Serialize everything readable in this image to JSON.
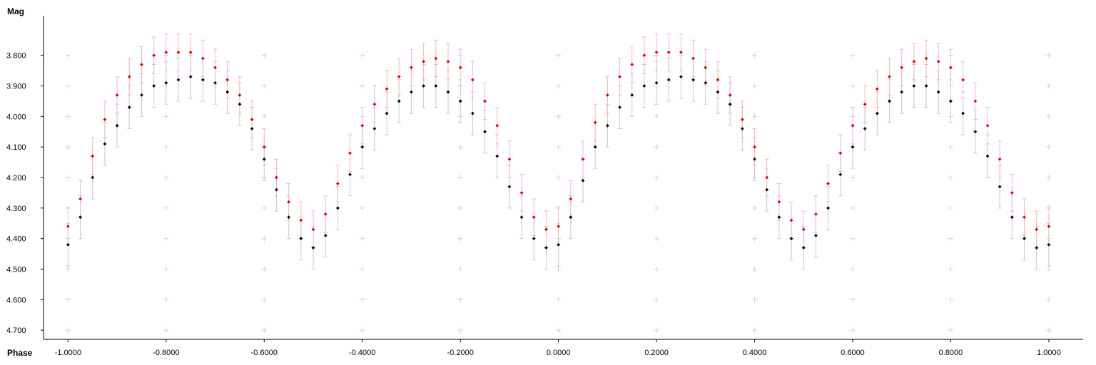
{
  "chart_data": {
    "type": "scatter",
    "title": "",
    "xlabel": "Phase",
    "ylabel": "Mag",
    "xlim": [
      -1.05,
      1.07
    ],
    "ylim": [
      3.67,
      4.73
    ],
    "y_inverted": true,
    "grid": "plus-markers",
    "legend": "none",
    "x_ticks": [
      -1.0,
      -0.8,
      -0.6,
      -0.4,
      -0.2,
      0.0,
      0.2,
      0.4,
      0.6,
      0.8,
      1.0
    ],
    "x_tick_labels": [
      "-1.0000",
      "-0.8000",
      "-0.6000",
      "-0.4000",
      "-0.2000",
      "0.0000",
      "0.2000",
      "0.4000",
      "0.6000",
      "0.8000",
      "1.0000"
    ],
    "y_ticks": [
      3.8,
      3.9,
      4.0,
      4.1,
      4.2,
      4.3,
      4.4,
      4.5,
      4.6,
      4.7
    ],
    "y_tick_labels": [
      "3.800",
      "3.900",
      "4.000",
      "4.100",
      "4.200",
      "4.300",
      "4.400",
      "4.500",
      "4.600",
      "4.700"
    ],
    "series": [
      {
        "color": "#000000",
        "error_color": "#c8c8c8",
        "x": [
          -1.0,
          -0.975,
          -0.95,
          -0.925,
          -0.9,
          -0.875,
          -0.85,
          -0.825,
          -0.8,
          -0.775,
          -0.75,
          -0.725,
          -0.7,
          -0.675,
          -0.65,
          -0.625,
          -0.6,
          -0.575,
          -0.55,
          -0.525,
          -0.5,
          -0.475,
          -0.45,
          -0.425,
          -0.4,
          -0.375,
          -0.35,
          -0.325,
          -0.3,
          -0.275,
          -0.25,
          -0.225,
          -0.2,
          -0.175,
          -0.15,
          -0.125,
          -0.1,
          -0.075,
          -0.05,
          -0.025,
          0.0,
          0.025,
          0.05,
          0.075,
          0.1,
          0.125,
          0.15,
          0.175,
          0.2,
          0.225,
          0.25,
          0.275,
          0.3,
          0.325,
          0.35,
          0.375,
          0.4,
          0.425,
          0.45,
          0.475,
          0.5,
          0.525,
          0.55,
          0.575,
          0.6,
          0.625,
          0.65,
          0.675,
          0.7,
          0.725,
          0.75,
          0.775,
          0.8,
          0.825,
          0.85,
          0.875,
          0.9,
          0.925,
          0.95,
          0.975,
          1.0
        ],
        "y": [
          4.42,
          4.33,
          4.2,
          4.09,
          4.03,
          3.97,
          3.93,
          3.9,
          3.89,
          3.88,
          3.87,
          3.88,
          3.89,
          3.92,
          3.96,
          4.04,
          4.14,
          4.24,
          4.33,
          4.4,
          4.43,
          4.39,
          4.3,
          4.19,
          4.1,
          4.04,
          3.99,
          3.95,
          3.92,
          3.9,
          3.9,
          3.92,
          3.95,
          3.99,
          4.05,
          4.13,
          4.23,
          4.33,
          4.4,
          4.43,
          4.42,
          4.33,
          4.21,
          4.1,
          4.03,
          3.97,
          3.93,
          3.9,
          3.89,
          3.88,
          3.87,
          3.88,
          3.89,
          3.92,
          3.96,
          4.04,
          4.14,
          4.24,
          4.33,
          4.4,
          4.43,
          4.39,
          4.3,
          4.19,
          4.1,
          4.04,
          3.99,
          3.95,
          3.92,
          3.9,
          3.9,
          3.92,
          3.95,
          3.99,
          4.05,
          4.13,
          4.23,
          4.33,
          4.4,
          4.43,
          4.42
        ],
        "error": 0.07
      },
      {
        "color": "#e00000",
        "error_color": "#f2b8b8",
        "x": [
          -1.0,
          -0.975,
          -0.95,
          -0.925,
          -0.9,
          -0.875,
          -0.85,
          -0.825,
          -0.8,
          -0.775,
          -0.75,
          -0.725,
          -0.7,
          -0.675,
          -0.65,
          -0.625,
          -0.6,
          -0.575,
          -0.55,
          -0.525,
          -0.5,
          -0.475,
          -0.45,
          -0.425,
          -0.4,
          -0.375,
          -0.35,
          -0.325,
          -0.3,
          -0.275,
          -0.25,
          -0.225,
          -0.2,
          -0.175,
          -0.15,
          -0.125,
          -0.1,
          -0.075,
          -0.05,
          -0.025,
          0.0,
          0.025,
          0.05,
          0.075,
          0.1,
          0.125,
          0.15,
          0.175,
          0.2,
          0.225,
          0.25,
          0.275,
          0.3,
          0.325,
          0.35,
          0.375,
          0.4,
          0.425,
          0.45,
          0.475,
          0.5,
          0.525,
          0.55,
          0.575,
          0.6,
          0.625,
          0.65,
          0.675,
          0.7,
          0.725,
          0.75,
          0.775,
          0.8,
          0.825,
          0.85,
          0.875,
          0.9,
          0.925,
          0.95,
          0.975,
          1.0
        ],
        "y": [
          4.36,
          4.27,
          4.13,
          4.01,
          3.93,
          3.87,
          3.83,
          3.8,
          3.79,
          3.79,
          3.79,
          3.81,
          3.84,
          3.88,
          3.93,
          4.01,
          4.1,
          4.2,
          4.28,
          4.34,
          4.37,
          4.32,
          4.22,
          4.12,
          4.03,
          3.96,
          3.91,
          3.87,
          3.84,
          3.82,
          3.81,
          3.82,
          3.84,
          3.88,
          3.95,
          4.03,
          4.14,
          4.25,
          4.33,
          4.37,
          4.36,
          4.27,
          4.14,
          4.02,
          3.93,
          3.87,
          3.83,
          3.8,
          3.79,
          3.79,
          3.79,
          3.81,
          3.84,
          3.88,
          3.93,
          4.01,
          4.1,
          4.2,
          4.28,
          4.34,
          4.37,
          4.32,
          4.22,
          4.12,
          4.03,
          3.96,
          3.91,
          3.87,
          3.84,
          3.82,
          3.81,
          3.82,
          3.84,
          3.88,
          3.95,
          4.03,
          4.14,
          4.25,
          4.33,
          4.37,
          4.36
        ],
        "error": 0.06
      }
    ]
  }
}
